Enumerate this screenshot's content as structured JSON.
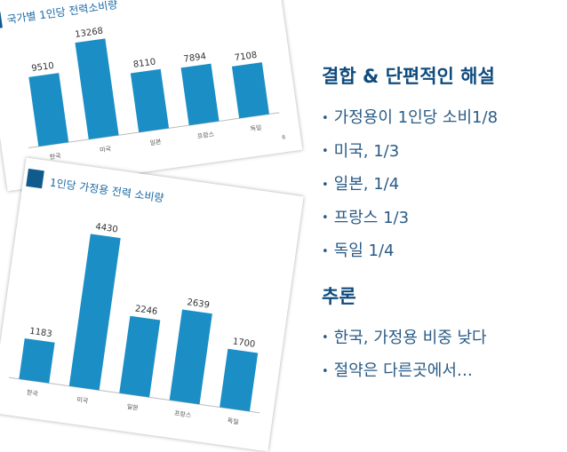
{
  "chart_data": [
    {
      "type": "bar",
      "title": "국가별 1인당 전력소비량",
      "categories": [
        "한국",
        "미국",
        "일본",
        "프랑스",
        "독일"
      ],
      "values": [
        9510,
        13268,
        8110,
        7894,
        7108
      ],
      "value_labels": [
        "9510",
        "13268",
        "8110",
        "7894",
        "7108"
      ],
      "color": "#1b8fc5",
      "page_number": "6"
    },
    {
      "type": "bar",
      "title": "1인당 가정용 전력 소비량",
      "categories": [
        "한국",
        "미국",
        "일본",
        "프랑스",
        "독일"
      ],
      "values": [
        1183,
        4430,
        2246,
        2639,
        1700
      ],
      "value_labels": [
        "1183",
        "4430",
        "2246",
        "2639",
        "1700"
      ],
      "color": "#1b8fc5"
    }
  ],
  "text": {
    "heading1": "결합 & 단편적인 해설",
    "bullets1": [
      "가정용이 1인당 소비1/8",
      "미국, 1/3",
      "일본, 1/4",
      "프랑스 1/3",
      "독일 1/4"
    ],
    "heading2": "추론",
    "bullets2": [
      "한국, 가정용 비중 낮다",
      "절약은 다른곳에서…"
    ]
  }
}
